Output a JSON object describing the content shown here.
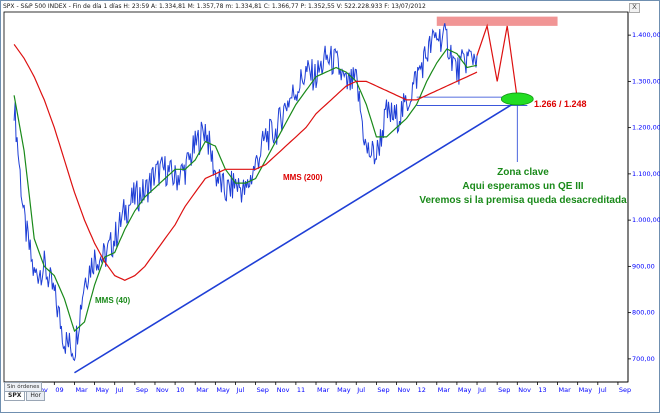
{
  "header": {
    "text": "SPX - S&P 500 INDEX - Fin de día 1 días H: 23:59  A: 1.334,81  M: 1.357,78  m: 1.334,81  C: 1.366,77  P: 1.352,55  V: 522.228.933  F: 13/07/2012",
    "close_label": "X"
  },
  "toolbar": {
    "orders_label": "Sin órdenes"
  },
  "tabs": [
    {
      "label": "SPX",
      "active": true
    },
    {
      "label": "Hor",
      "active": false
    }
  ],
  "chart_data": {
    "type": "line",
    "title": "SPX - S&P 500 INDEX",
    "ylim": [
      650,
      1450
    ],
    "y_ticks": [
      "1.400,00",
      "1.300,00",
      "1.200,00",
      "1.100,00",
      "1.000,00",
      "900,00",
      "800,00",
      "700,00"
    ],
    "y_tick_values": [
      1400,
      1300,
      1200,
      1100,
      1000,
      900,
      800,
      700
    ],
    "x_ticks": [
      "Sep",
      "Nov",
      "09",
      "Mar",
      "May",
      "Jul",
      "Sep",
      "Nov",
      "10",
      "Mar",
      "May",
      "Jul",
      "Sep",
      "Nov",
      "11",
      "Mar",
      "May",
      "Jul",
      "Sep",
      "Nov",
      "12",
      "Mar",
      "May",
      "Jul",
      "Sep",
      "Nov",
      "13",
      "Mar",
      "May",
      "Jul",
      "Sep"
    ],
    "x_tick_dates": [
      "2008-09",
      "2008-11",
      "2009-01",
      "2009-03",
      "2009-05",
      "2009-07",
      "2009-09",
      "2009-11",
      "2010-01",
      "2010-03",
      "2010-05",
      "2010-07",
      "2010-09",
      "2010-11",
      "2011-01",
      "2011-03",
      "2011-05",
      "2011-07",
      "2011-09",
      "2011-11",
      "2012-01",
      "2012-03",
      "2012-05",
      "2012-07",
      "2012-09",
      "2012-11",
      "2013-01",
      "2013-03",
      "2013-05",
      "2013-07",
      "2013-09"
    ],
    "series": [
      {
        "name": "SPX",
        "color": "#1f3fd6",
        "x": [
          "2008-09",
          "2008-10",
          "2008-11",
          "2008-12",
          "2009-01",
          "2009-02",
          "2009-03",
          "2009-04",
          "2009-05",
          "2009-06",
          "2009-07",
          "2009-08",
          "2009-09",
          "2009-10",
          "2009-11",
          "2009-12",
          "2010-01",
          "2010-02",
          "2010-03",
          "2010-04",
          "2010-05",
          "2010-06",
          "2010-07",
          "2010-08",
          "2010-09",
          "2010-10",
          "2010-11",
          "2010-12",
          "2011-01",
          "2011-02",
          "2011-03",
          "2011-04",
          "2011-05",
          "2011-06",
          "2011-07",
          "2011-08",
          "2011-09",
          "2011-10",
          "2011-11",
          "2011-12",
          "2012-01",
          "2012-02",
          "2012-03",
          "2012-04",
          "2012-05",
          "2012-06",
          "2012-07"
        ],
        "values": [
          1250,
          1000,
          880,
          900,
          840,
          740,
          720,
          870,
          920,
          920,
          960,
          1020,
          1050,
          1060,
          1100,
          1110,
          1090,
          1110,
          1160,
          1200,
          1100,
          1060,
          1080,
          1060,
          1120,
          1180,
          1190,
          1250,
          1280,
          1320,
          1310,
          1350,
          1340,
          1290,
          1300,
          1150,
          1140,
          1230,
          1220,
          1250,
          1310,
          1360,
          1400,
          1390,
          1320,
          1350,
          1356
        ]
      },
      {
        "name": "MMS (40)",
        "color": "#1a8a1a",
        "x": [
          "2008-09",
          "2008-10",
          "2008-11",
          "2008-12",
          "2009-01",
          "2009-02",
          "2009-03",
          "2009-04",
          "2009-05",
          "2009-06",
          "2009-07",
          "2009-08",
          "2009-09",
          "2009-10",
          "2009-11",
          "2009-12",
          "2010-01",
          "2010-02",
          "2010-03",
          "2010-04",
          "2010-05",
          "2010-06",
          "2010-07",
          "2010-08",
          "2010-09",
          "2010-10",
          "2010-11",
          "2010-12",
          "2011-01",
          "2011-02",
          "2011-03",
          "2011-04",
          "2011-05",
          "2011-06",
          "2011-07",
          "2011-08",
          "2011-09",
          "2011-10",
          "2011-11",
          "2011-12",
          "2012-01",
          "2012-02",
          "2012-03",
          "2012-04",
          "2012-05",
          "2012-06",
          "2012-07"
        ],
        "values": [
          1270,
          1150,
          960,
          900,
          880,
          830,
          760,
          780,
          860,
          920,
          930,
          980,
          1020,
          1050,
          1070,
          1090,
          1110,
          1110,
          1130,
          1170,
          1160,
          1110,
          1080,
          1080,
          1090,
          1130,
          1170,
          1210,
          1250,
          1280,
          1310,
          1320,
          1330,
          1320,
          1300,
          1250,
          1180,
          1180,
          1200,
          1220,
          1250,
          1300,
          1340,
          1370,
          1360,
          1330,
          1335
        ]
      },
      {
        "name": "MMS (200)",
        "color": "#dd1111",
        "x": [
          "2008-09",
          "2008-10",
          "2008-11",
          "2008-12",
          "2009-01",
          "2009-02",
          "2009-03",
          "2009-04",
          "2009-05",
          "2009-06",
          "2009-07",
          "2009-08",
          "2009-09",
          "2009-10",
          "2009-11",
          "2009-12",
          "2010-01",
          "2010-02",
          "2010-03",
          "2010-04",
          "2010-05",
          "2010-06",
          "2010-07",
          "2010-08",
          "2010-09",
          "2010-10",
          "2010-11",
          "2010-12",
          "2011-01",
          "2011-02",
          "2011-03",
          "2011-04",
          "2011-05",
          "2011-06",
          "2011-07",
          "2011-08",
          "2011-09",
          "2011-10",
          "2011-11",
          "2011-12",
          "2012-01",
          "2012-02",
          "2012-03",
          "2012-04",
          "2012-05",
          "2012-06",
          "2012-07"
        ],
        "values": [
          1380,
          1350,
          1310,
          1260,
          1200,
          1130,
          1060,
          1000,
          950,
          910,
          880,
          870,
          880,
          900,
          930,
          960,
          990,
          1030,
          1060,
          1090,
          1100,
          1110,
          1110,
          1110,
          1110,
          1120,
          1140,
          1160,
          1180,
          1200,
          1230,
          1250,
          1270,
          1290,
          1300,
          1300,
          1290,
          1280,
          1270,
          1260,
          1260,
          1270,
          1280,
          1290,
          1300,
          1310,
          1320
        ]
      }
    ],
    "annotations": {
      "mms40_label": "MMS (40)",
      "mms200_label": "MMS (200)",
      "level_label": "1.266 / 1.248",
      "zone_lines": [
        "Zona clave",
        "Aqui esperamos un QE III",
        "Veremos si la premisa queda desacreditada"
      ],
      "resistance_zone": [
        1420,
        1440
      ],
      "support_level": [
        1248,
        1266
      ],
      "trendline_from": {
        "x": "2009-03",
        "y": 670
      },
      "trendline_to": {
        "x": "2012-11",
        "y": 1257
      }
    }
  }
}
